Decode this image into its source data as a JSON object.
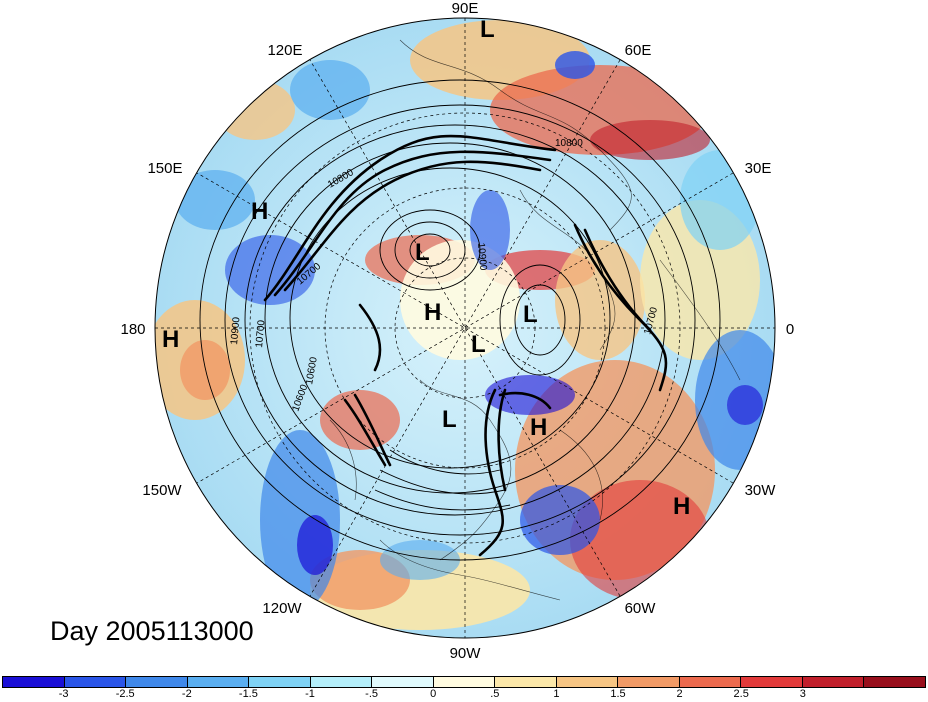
{
  "map": {
    "projection": "north polar stereographic",
    "longitude_labels": [
      "90E",
      "60E",
      "30E",
      "0",
      "30W",
      "60W",
      "90W",
      "120W",
      "150W",
      "180",
      "150E",
      "120E"
    ],
    "contour_labels": [
      "10800",
      "10800",
      "10900",
      "10700",
      "10700",
      "10600",
      "10900",
      "10700",
      "10600"
    ],
    "pressure_centers": [
      "L",
      "L",
      "L",
      "L",
      "L",
      "H",
      "H",
      "H",
      "H",
      "H"
    ]
  },
  "caption": {
    "text": "Day 2005113000"
  },
  "colorbar": {
    "colors": [
      "#1a0fd6",
      "#2a55e8",
      "#3f88ea",
      "#5aaef0",
      "#7fd2f5",
      "#b4eefa",
      "#e0fafd",
      "#fffbe0",
      "#fbe7a9",
      "#f6c584",
      "#f19a66",
      "#ec6a4e",
      "#e23a3a",
      "#c11f2b",
      "#980f1c"
    ],
    "tick_labels": [
      "-3",
      "-2.5",
      "-2",
      "-1.5",
      "-1",
      "-.5",
      "0",
      ".5",
      "1",
      "1.5",
      "2",
      "2.5",
      "3"
    ]
  }
}
